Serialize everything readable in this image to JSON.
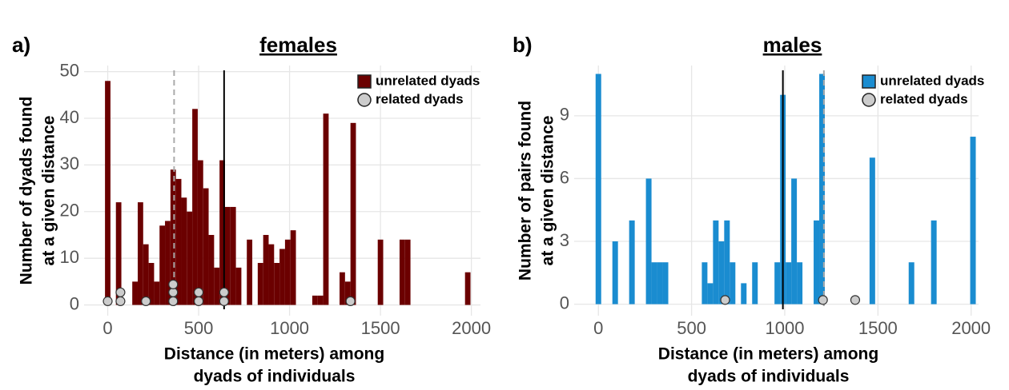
{
  "chart_data": [
    {
      "type": "histogram",
      "label": "a)",
      "title": "females",
      "xlabel": [
        "Distance (in meters) among",
        "dyads of individuals"
      ],
      "ylabel": [
        "Number of dyads found",
        "at a given distance"
      ],
      "bins": [
        -15,
        15,
        45,
        75,
        105,
        135,
        165,
        195,
        225,
        255,
        285,
        315,
        345,
        375,
        405,
        435,
        465,
        495,
        525,
        555,
        585,
        615,
        645,
        675,
        705,
        735,
        765,
        795,
        825,
        855,
        885,
        915,
        945,
        975,
        1005,
        1035,
        1065,
        1095,
        1125,
        1155,
        1185,
        1215,
        1245,
        1275,
        1305,
        1335,
        1365,
        1395,
        1425,
        1455,
        1485,
        1515,
        1545,
        1575,
        1605,
        1635,
        1665,
        1695,
        1725,
        1755,
        1785,
        1815,
        1845,
        1875,
        1905,
        1935,
        1965,
        1995
      ],
      "series": [
        {
          "name": "unrelated dyads",
          "color": "#6b0000",
          "values": [
            48,
            0,
            22,
            0,
            0,
            5,
            22,
            13,
            9,
            5,
            17,
            18,
            29,
            27,
            23,
            20,
            42,
            31,
            25,
            15,
            8,
            31,
            21,
            21,
            8,
            0,
            14,
            0,
            9,
            15,
            13,
            9,
            12,
            14,
            16,
            0,
            0,
            0,
            2,
            2,
            41,
            0,
            0,
            7,
            5,
            39,
            0,
            0,
            0,
            0,
            14,
            0,
            0,
            0,
            14,
            14,
            0,
            0,
            0,
            0,
            0,
            0,
            0,
            0,
            0,
            0,
            7
          ]
        },
        {
          "name": "related dyads",
          "type": "scatter",
          "color": "#cccccc",
          "x": [
            0,
            70,
            70,
            210,
            360,
            360,
            360,
            500,
            500,
            640,
            640,
            1335
          ],
          "y": [
            0.8,
            0.8,
            2.7,
            0.8,
            0.8,
            2.7,
            4.4,
            0.8,
            2.7,
            0.8,
            2.7,
            0.8
          ]
        }
      ],
      "reference_lines": [
        {
          "x": 365,
          "color": "#aaaaaa",
          "dashed": true
        },
        {
          "x": 640,
          "color": "#000000",
          "dashed": false
        }
      ],
      "xlim": [
        -130,
        2050
      ],
      "ylim": [
        -2.3,
        51.3
      ],
      "xticks": [
        0,
        500,
        1000,
        1500,
        2000
      ],
      "yticks": [
        0,
        10,
        20,
        30,
        40,
        50
      ],
      "grid": true,
      "legend": "top-right"
    },
    {
      "type": "histogram",
      "label": "b)",
      "title": "males",
      "xlabel": [
        "Distance (in meters) among",
        "dyads of individuals"
      ],
      "ylabel": [
        "Number of pairs found",
        "at a given distance"
      ],
      "bins": [
        -15,
        15,
        45,
        75,
        105,
        135,
        165,
        195,
        225,
        255,
        285,
        315,
        345,
        375,
        405,
        435,
        465,
        495,
        525,
        555,
        585,
        615,
        645,
        675,
        705,
        735,
        765,
        795,
        825,
        855,
        885,
        915,
        945,
        975,
        1005,
        1035,
        1065,
        1095,
        1125,
        1155,
        1185,
        1215,
        1245,
        1275,
        1305,
        1335,
        1365,
        1395,
        1425,
        1455,
        1485,
        1515,
        1545,
        1575,
        1605,
        1635,
        1665,
        1695,
        1725,
        1755,
        1785,
        1815,
        1845,
        1875,
        1905,
        1935,
        1965,
        1995,
        2025
      ],
      "series": [
        {
          "name": "unrelated dyads",
          "color": "#1a8cd0",
          "values": [
            11,
            0,
            0,
            3,
            0,
            0,
            4,
            0,
            0,
            6,
            2,
            2,
            2,
            0,
            0,
            0,
            0,
            0,
            0,
            2,
            1,
            4,
            3,
            4,
            2,
            0,
            1,
            0,
            2,
            0,
            0,
            0,
            2,
            10,
            2,
            6,
            2,
            0,
            0,
            4,
            11,
            0,
            0,
            0,
            0,
            0,
            0,
            0,
            0,
            7,
            0,
            0,
            0,
            0,
            0,
            0,
            2,
            0,
            0,
            0,
            4,
            0,
            0,
            0,
            0,
            0,
            0,
            8
          ]
        },
        {
          "name": "related dyads",
          "type": "scatter",
          "color": "#cccccc",
          "x": [
            680,
            1205,
            1378
          ],
          "y": [
            0.2,
            0.2,
            0.2
          ]
        }
      ],
      "reference_lines": [
        {
          "x": 990,
          "color": "#000000",
          "dashed": false
        },
        {
          "x": 1210,
          "color": "#aaaaaa",
          "dashed": true
        }
      ],
      "xlim": [
        -130,
        2040
      ],
      "ylim": [
        -0.55,
        11.4
      ],
      "xticks": [
        0,
        500,
        1000,
        1500,
        2000
      ],
      "yticks": [
        0,
        3,
        6,
        9
      ],
      "grid": true,
      "legend": "top-right"
    }
  ]
}
